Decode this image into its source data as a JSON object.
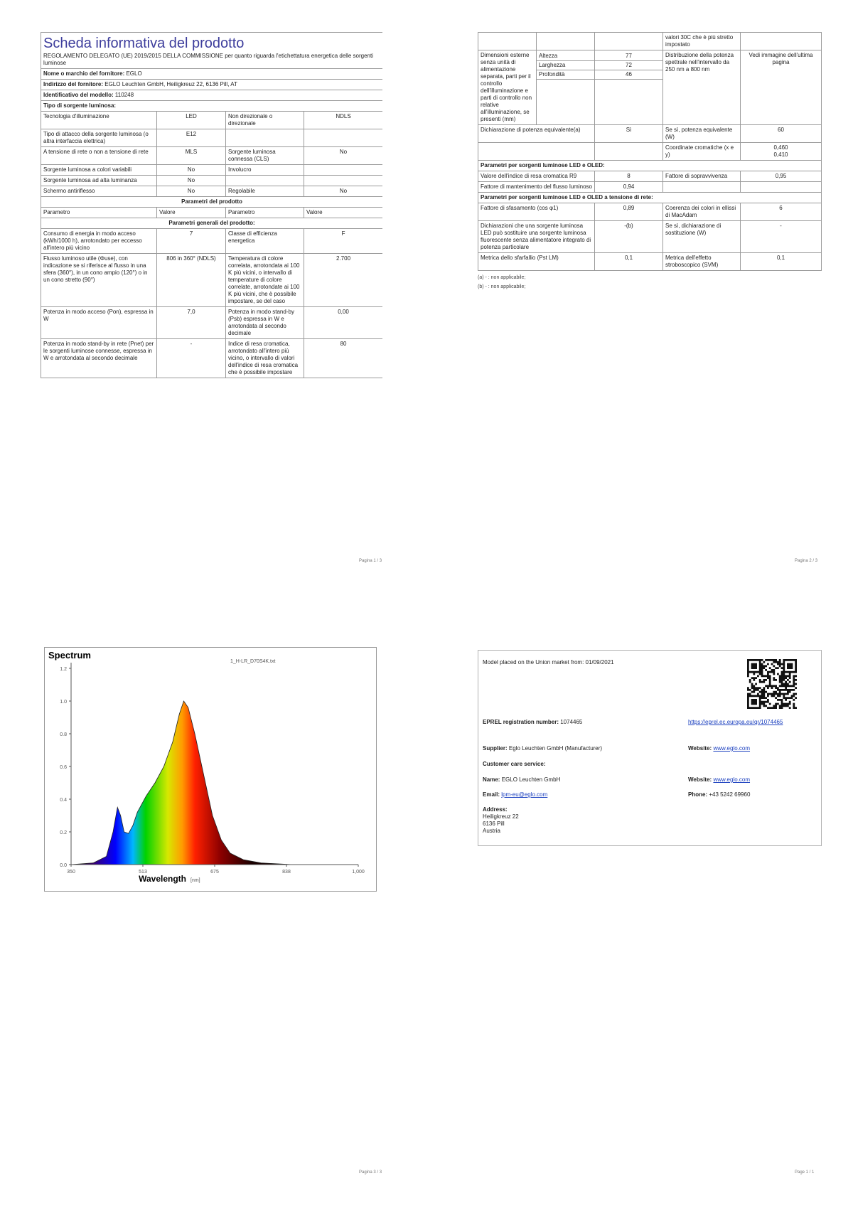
{
  "page1": {
    "title": "Scheda informativa del prodotto",
    "subtitle": "REGOLAMENTO DELEGATO (UE) 2019/2015 DELLA COMMISSIONE per quanto riguarda l'etichettatura energetica delle sorgenti luminose",
    "info": [
      {
        "label": "Nome o marchio del fornitore:",
        "value": "EGLO"
      },
      {
        "label": "Indirizzo del fornitore:",
        "value": "EGLO Leuchten GmbH, Heiligkreuz 22, 6136 Pill, AT"
      },
      {
        "label": "Identificativo del modello:",
        "value": "110248"
      }
    ],
    "type_title": "Tipo di sorgente luminosa:",
    "rows": [
      [
        "Tecnologia d'illuminazione",
        "LED",
        "Non direzionale o direzionale",
        "NDLS"
      ],
      [
        "Tipo di attacco della sorgente luminosa (o altra interfaccia elettrica)",
        "E12"
      ],
      [
        "A tensione di rete o non a tensione di rete",
        "MLS",
        "Sorgente luminosa connessa (CLS)",
        "No"
      ],
      [
        "Sorgente luminosa a colori variabili",
        "No",
        "Involucro"
      ],
      [
        "Sorgente luminosa ad alta luminanza",
        "No"
      ],
      [
        "Schermo antiriflesso",
        "No",
        "Regolabile",
        "No"
      ]
    ],
    "params_title": "Parametri del prodotto",
    "header": [
      "Parametro",
      "Valore",
      "Parametro",
      "Valore"
    ],
    "general_title": "Parametri generali del prodotto:",
    "general_rows": [
      [
        "Consumo di energia in modo acceso (kWh/1000 h), arrotondato per eccesso all'intero più vicino",
        "7",
        "Classe di efficienza energetica",
        "F"
      ],
      [
        "Flusso luminoso utile (Φuse), con indicazione se si riferisce al flusso in una sfera (360°), in un cono ampio (120°) o in un cono stretto (90°)",
        "806 in 360° (NDLS)",
        "Temperatura di colore correlata, arrotondata ai 100 K più vicini, o intervallo di temperature di colore correlate, arrotondate ai 100 K più vicini, che è possibile impostare, se del caso",
        "2.700"
      ],
      [
        "Potenza in modo acceso (Pon), espressa in W",
        "7,0",
        "Potenza in modo stand-by (Psb) espressa in W e arrotondata al secondo decimale",
        "0,00"
      ],
      [
        "Potenza in modo stand-by in rete (Pnet) per le sorgenti luminose connesse, espressa in W e arrotondata al secondo decimale",
        "-",
        "Indice di resa cromatica, arrotondato all'intero più vicino, o intervallo di valori dell'indice di resa cromatica che è possibile impostare",
        "80"
      ]
    ],
    "footer": "Pagina 1 / 3"
  },
  "page2": {
    "top_note": "valori 30C che è più stretto impostato",
    "dimensions": {
      "label": "Dimensioni esterne senza unità di alimentazione separata, parti per il controllo dell'illuminazione e parti di controllo non relative all'illuminazione, se presenti (mm)",
      "items": [
        {
          "name": "Altezza",
          "value": "77"
        },
        {
          "name": "Larghezza",
          "value": "72"
        },
        {
          "name": "Profondità",
          "value": "46"
        }
      ],
      "spd_label": "Distribuzione della potenza spettrale nell'intervallo da 250 nm a 800 nm",
      "spd_value": "Vedi immagine dell'ultima pagina"
    },
    "equivalent": [
      "Dichiarazione di potenza equivalente(a)",
      "Sì",
      "Se sì, potenza equivalente (W)",
      "60"
    ],
    "chroma": {
      "label": "Coordinate cromatiche (x e y)",
      "x": "0,460",
      "y": "0,410"
    },
    "led_title": "Parametri per sorgenti luminose LED e OLED:",
    "led_rows": [
      [
        "Valore dell'indice di resa cromatica R9",
        "8",
        "Fattore di sopravvivenza",
        "0,95"
      ],
      [
        "Fattore di mantenimento del flusso luminoso",
        "0,94"
      ]
    ],
    "mains_title": "Parametri per sorgenti luminose LED e OLED a tensione di rete:",
    "mains_rows": [
      [
        "Fattore di sfasamento (cos φ1)",
        "0,89",
        "Coerenza dei colori in ellissi di MacAdam",
        "6"
      ],
      [
        "Dichiarazioni che una sorgente luminosa LED può sostituire una sorgente luminosa fluorescente senza alimentatore integrato di potenza particolare",
        "-(b)",
        "Se sì, dichiarazione di sostituzione (W)",
        "-"
      ],
      [
        "Metrica dello sfarfallio (Pst LM)",
        "0,1",
        "Metrica dell'effetto stroboscopico (SVM)",
        "0,1"
      ]
    ],
    "notes": [
      "(a) - : non applicabile;",
      "(b) - : non applicabile;"
    ],
    "footer": "Pagina 2 / 3"
  },
  "chart_data": {
    "type": "area",
    "title": "Spectrum",
    "legend": "1_H-LR_D70S4K.txt",
    "xlabel": "Wavelength",
    "xunit": "[nm]",
    "x": [
      350,
      400,
      430,
      445,
      455,
      462,
      470,
      480,
      490,
      500,
      520,
      540,
      560,
      580,
      595,
      605,
      615,
      630,
      650,
      670,
      690,
      710,
      740,
      780,
      850,
      1000
    ],
    "values": [
      0,
      0.01,
      0.05,
      0.2,
      0.35,
      0.3,
      0.2,
      0.19,
      0.24,
      0.32,
      0.42,
      0.5,
      0.6,
      0.75,
      0.92,
      1.0,
      0.96,
      0.8,
      0.55,
      0.3,
      0.15,
      0.07,
      0.03,
      0.01,
      0,
      0
    ],
    "xlim": [
      350,
      1000
    ],
    "ylim": [
      0,
      1.2
    ],
    "xticks": [
      350,
      {
        "value": 512.5,
        "label": "513"
      },
      675,
      {
        "value": 837.5,
        "label": "838"
      },
      {
        "value": 1000,
        "label": "1,000"
      }
    ],
    "yticks": [
      {
        "value": 0,
        "label": "0.0"
      },
      0.2,
      0.4,
      0.6,
      0.8,
      {
        "value": 1,
        "label": "1.0"
      },
      1.2
    ]
  },
  "page3": {
    "footer": "Pagina 3 / 3"
  },
  "page4": {
    "placed_label": "Model placed on the Union market from:",
    "placed_value": "01/09/2021",
    "eprel_label": "EPREL registration number:",
    "eprel_value": "1074465",
    "eprel_link": "https://eprel.ec.europa.eu/qr/1074465",
    "supplier_label": "Supplier:",
    "supplier_value": "Eglo Leuchten GmbH (Manufacturer)",
    "website_label": "Website:",
    "website_value": "www.eglo.com",
    "care_title": "Customer care service:",
    "name_label": "Name:",
    "name_value": "EGLO Leuchten GmbH",
    "care_website_label": "Website:",
    "care_website_value": "www.eglo.com",
    "email_label": "Email:",
    "email_value": "lpm-eu@eglo.com",
    "phone_label": "Phone:",
    "phone_value": "+43 5242 69960",
    "address_label": "Address:",
    "address_lines": [
      "Heiligkreuz 22",
      "6136 Pill",
      "Austria"
    ],
    "footer": "Page 1 / 1"
  }
}
